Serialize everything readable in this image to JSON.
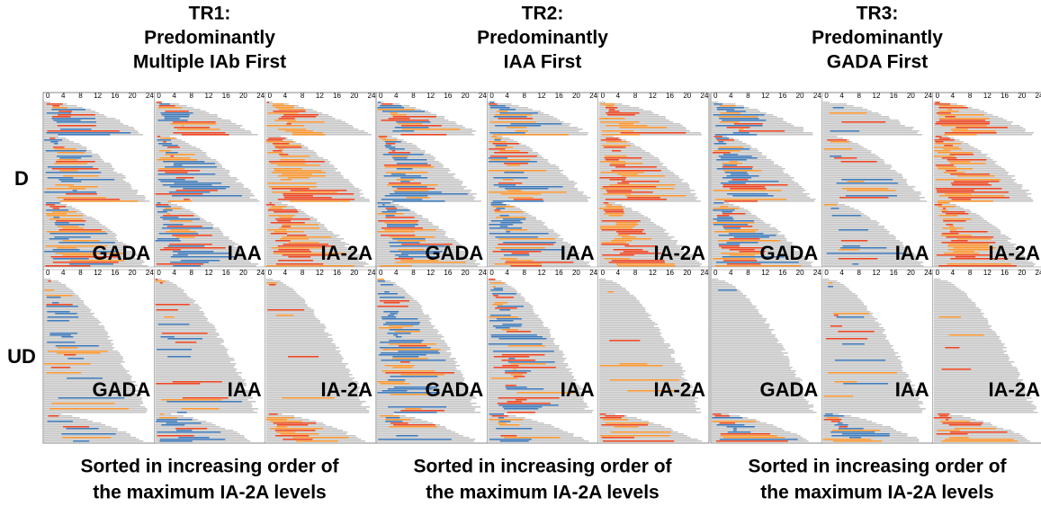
{
  "columns": [
    {
      "title": [
        "TR1:",
        "Predominantly",
        "Multiple IAb First"
      ],
      "caption": [
        "Sorted in increasing order of",
        "the maximum IA-2A levels"
      ]
    },
    {
      "title": [
        "TR2:",
        "Predominantly",
        "IAA First"
      ],
      "caption": [
        "Sorted in increasing order of",
        "the maximum IA-2A levels"
      ]
    },
    {
      "title": [
        "TR3:",
        "Predominantly",
        "GADA First"
      ],
      "caption": [
        "Sorted in increasing order of",
        "the maximum IA-2A levels"
      ]
    }
  ],
  "rows": [
    "D",
    "UD"
  ],
  "panels": [
    "GADA",
    "IAA",
    "IA-2A"
  ],
  "axis_ticks": [
    0,
    4,
    8,
    12,
    16,
    20,
    24
  ]
}
